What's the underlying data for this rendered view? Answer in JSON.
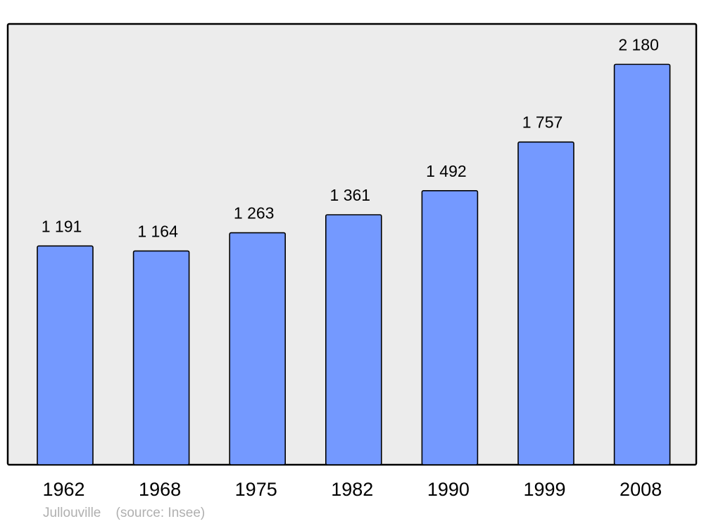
{
  "chart_data": {
    "type": "bar",
    "categories": [
      "1962",
      "1968",
      "1975",
      "1982",
      "1990",
      "1999",
      "2008"
    ],
    "values": [
      1191,
      1164,
      1263,
      1361,
      1492,
      1757,
      2180
    ],
    "value_labels": [
      "1 191",
      "1 164",
      "1 263",
      "1 361",
      "1 492",
      "1 757",
      "2 180"
    ],
    "title": "",
    "xlabel": "",
    "ylabel": "",
    "ylim": [
      0,
      2400
    ],
    "grid": false,
    "bar_color": "#7499ff",
    "background_color": "#ececec"
  },
  "caption": {
    "place": "Jullouville",
    "source": "(source: Insee)"
  }
}
